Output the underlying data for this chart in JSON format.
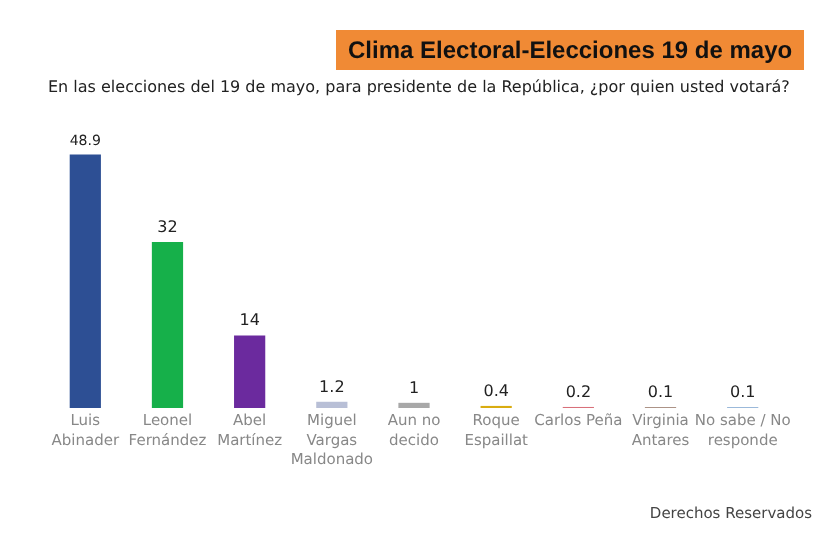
{
  "chart_data": {
    "type": "bar",
    "title": "Clima Electoral-Elecciones 19 de mayo",
    "subtitle": "En las elecciones del 19 de mayo, para presidente de la República, ¿por quien usted votará?",
    "categories": [
      "Luis Abinader",
      "Leonel Fernández",
      "Abel Martínez",
      "Miguel Vargas Maldonado",
      "Aun no decido",
      "Roque Espaillat",
      "Carlos Peña",
      "Virginia Antares",
      "No sabe / No responde"
    ],
    "values": [
      48.9,
      32,
      14,
      1.2,
      1,
      0.4,
      0.2,
      0.1,
      0.1
    ],
    "colors": [
      "#2d4f94",
      "#16b04a",
      "#6b2a9e",
      "#b8bfd6",
      "#a8a8a8",
      "#d9ac10",
      "#d8707a",
      "#5a2810",
      "#3f78b8"
    ],
    "data_labels": true,
    "annotations": [
      "Derechos Reservados"
    ]
  }
}
